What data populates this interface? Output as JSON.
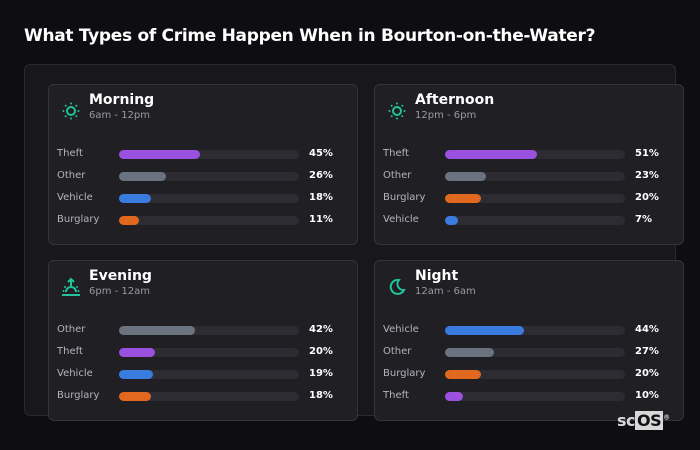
{
  "title": "What Types of Crime Happen When in Bourton-on-the-Water?",
  "logo": {
    "text_a": "sc",
    "text_b": "OS",
    "mark": "®"
  },
  "colors": {
    "Theft": "#9b51e0",
    "Other": "#6b7280",
    "Vehicle": "#3a7be0",
    "Burglary": "#e0691f",
    "accent": "#22c39a"
  },
  "chart_data": [
    {
      "type": "bar",
      "title": "Morning",
      "subtitle": "6am - 12pm",
      "icon": "sun-icon",
      "categories": [
        "Theft",
        "Other",
        "Vehicle",
        "Burglary"
      ],
      "values": [
        45,
        26,
        18,
        11
      ],
      "labels": [
        "45%",
        "26%",
        "18%",
        "11%"
      ]
    },
    {
      "type": "bar",
      "title": "Afternoon",
      "subtitle": "12pm - 6pm",
      "icon": "sun-icon",
      "categories": [
        "Theft",
        "Other",
        "Burglary",
        "Vehicle"
      ],
      "values": [
        51,
        23,
        20,
        7
      ],
      "labels": [
        "51%",
        "23%",
        "20%",
        "7%"
      ]
    },
    {
      "type": "bar",
      "title": "Evening",
      "subtitle": "6pm - 12am",
      "icon": "sunset-icon",
      "categories": [
        "Other",
        "Theft",
        "Vehicle",
        "Burglary"
      ],
      "values": [
        42,
        20,
        19,
        18
      ],
      "labels": [
        "42%",
        "20%",
        "19%",
        "18%"
      ]
    },
    {
      "type": "bar",
      "title": "Night",
      "subtitle": "12am - 6am",
      "icon": "moon-icon",
      "categories": [
        "Vehicle",
        "Other",
        "Burglary",
        "Theft"
      ],
      "values": [
        44,
        27,
        20,
        10
      ],
      "labels": [
        "44%",
        "27%",
        "20%",
        "10%"
      ]
    }
  ]
}
